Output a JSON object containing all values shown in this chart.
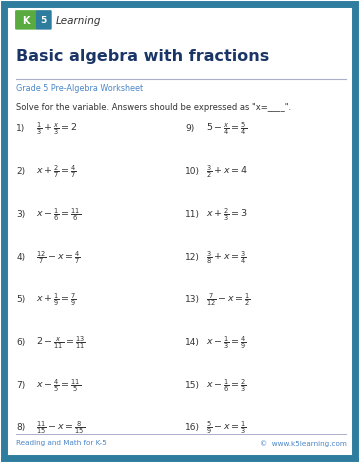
{
  "title": "Basic algebra with fractions",
  "subtitle": "Grade 5 Pre-Algebra Worksheet",
  "instruction": "Solve for the variable. Answers should be expressed as \"x=____\".",
  "footer_left": "Reading and Math for K-5",
  "footer_right": "©  www.k5learning.com",
  "bg_color": "#ffffff",
  "border_color": "#2e7d9e",
  "title_color": "#1a3566",
  "subtitle_color": "#4a86c8",
  "text_color": "#333333",
  "problems_left": [
    {
      "num": "1)",
      "eq": "$\\frac{1}{3}+\\frac{x}{3}= 2$"
    },
    {
      "num": "2)",
      "eq": "$x +\\frac{2}{7}=\\frac{4}{7}$"
    },
    {
      "num": "3)",
      "eq": "$x - \\frac{1}{6} = \\frac{11}{6}$"
    },
    {
      "num": "4)",
      "eq": "$\\frac{12}{7} - x = \\frac{4}{7}$"
    },
    {
      "num": "5)",
      "eq": "$x + \\frac{1}{9}=\\frac{7}{9}$"
    },
    {
      "num": "6)",
      "eq": "$2 - \\frac{x}{11} = \\frac{13}{11}$"
    },
    {
      "num": "7)",
      "eq": "$x - \\frac{4}{5}=\\frac{11}{5}$"
    },
    {
      "num": "8)",
      "eq": "$\\frac{11}{15} - x = \\frac{8}{15}$"
    }
  ],
  "problems_right": [
    {
      "num": "9)",
      "eq": "$5 - \\frac{x}{4}=\\frac{5}{4}$"
    },
    {
      "num": "10)",
      "eq": "$\\frac{3}{2}+ x = 4$"
    },
    {
      "num": "11)",
      "eq": "$x +\\frac{2}{3}= 3$"
    },
    {
      "num": "12)",
      "eq": "$\\frac{3}{8}+ x = \\frac{3}{4}$"
    },
    {
      "num": "13)",
      "eq": "$\\frac{7}{12} - x = \\frac{1}{2}$"
    },
    {
      "num": "14)",
      "eq": "$x - \\frac{1}{3} = \\frac{4}{9}$"
    },
    {
      "num": "15)",
      "eq": "$x - \\frac{1}{6} = \\frac{2}{3}$"
    },
    {
      "num": "16)",
      "eq": "$\\frac{5}{9} - x =\\frac{1}{3}$"
    }
  ],
  "fig_width": 3.59,
  "fig_height": 4.64,
  "dpi": 100
}
